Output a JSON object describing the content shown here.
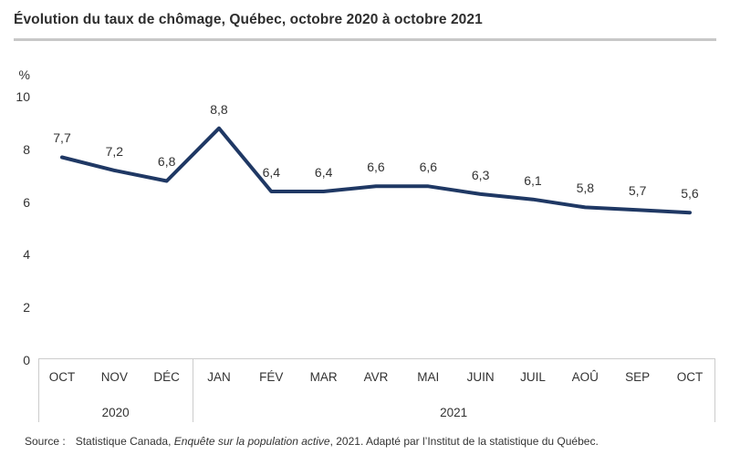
{
  "title": "Évolution du taux de chômage, Québec, octobre 2020 à octobre 2021",
  "colors": {
    "line": "#1f3864",
    "text": "#333333",
    "axis_border": "#cccccc",
    "title_divider": "#c8c8c8"
  },
  "chart_data": {
    "type": "line",
    "title": "Évolution du taux de chômage, Québec, octobre 2020 à octobre 2021",
    "ylabel": "%",
    "xlabel": "",
    "ylim": [
      0,
      10
    ],
    "yticks": [
      10,
      8,
      6,
      4,
      2,
      0
    ],
    "grid": "off",
    "legend": "none",
    "categories": [
      "OCT",
      "NOV",
      "DÉC",
      "JAN",
      "FÉV",
      "MAR",
      "AVR",
      "MAI",
      "JUIN",
      "JUIL",
      "AOÛ",
      "SEP",
      "OCT"
    ],
    "values": [
      7.7,
      7.2,
      6.8,
      8.8,
      6.4,
      6.4,
      6.6,
      6.6,
      6.3,
      6.1,
      5.8,
      5.7,
      5.6
    ],
    "value_labels": [
      "7,7",
      "7,2",
      "6,8",
      "8,8",
      "6,4",
      "6,4",
      "6,6",
      "6,6",
      "6,3",
      "6,1",
      "5,8",
      "5,7",
      "5,6"
    ],
    "year_groups": [
      {
        "label": "2020",
        "span": 3
      },
      {
        "label": "2021",
        "span": 10
      }
    ]
  },
  "source": {
    "label": "Source :",
    "before_italic": "Statistique Canada, ",
    "italic": "Enquête sur la population active",
    "after_italic": ", 2021. Adapté par l’Institut de la statistique du Québec."
  }
}
